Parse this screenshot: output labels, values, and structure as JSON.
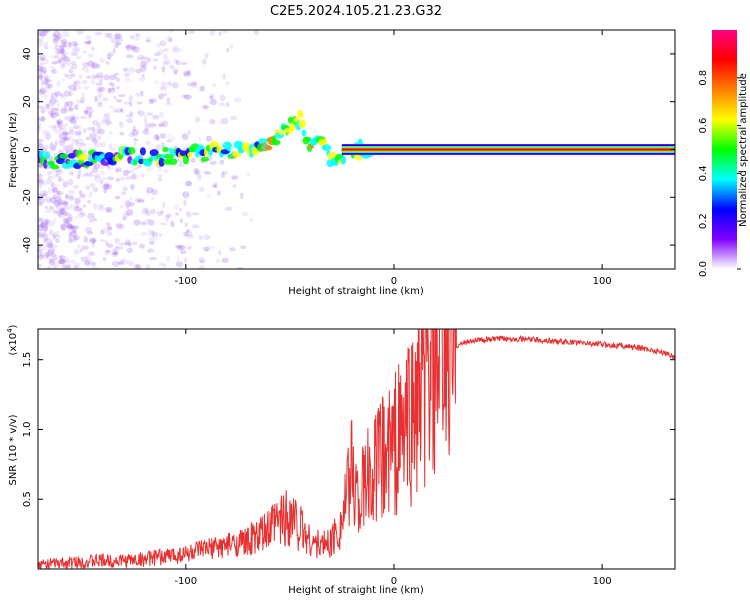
{
  "title": "C2E5.2024.105.21.23.G32",
  "chart_data": [
    {
      "type": "heatmap",
      "xlabel": "Height of straight line (km)",
      "ylabel": "Frequency (Hz)",
      "xlim": [
        -171,
        135
      ],
      "ylim": [
        -50,
        50
      ],
      "x_ticks": [
        -100,
        0,
        100
      ],
      "y_ticks": [
        -40,
        -20,
        0,
        20,
        40
      ],
      "x_tick_labels": [
        "-100",
        "0",
        "100"
      ],
      "y_tick_labels": [
        "-40",
        "-20",
        "0",
        "20",
        "40"
      ],
      "colorbar": {
        "label": "Normalized spectral amplitude",
        "range": [
          0,
          1
        ],
        "ticks": [
          0.0,
          0.2,
          0.4,
          0.6,
          0.8
        ],
        "tick_labels": [
          "0.0",
          "0.2",
          "0.4",
          "0.6",
          "0.8"
        ],
        "colormap": [
          "#ffffff",
          "#7f00ff",
          "#0000ff",
          "#00ffff",
          "#00ff00",
          "#ffff00",
          "#ff7f00",
          "#ff0000",
          "#ff0080"
        ]
      },
      "ridge": [
        {
          "x": -171,
          "y": -5
        },
        {
          "x": -150,
          "y": -4
        },
        {
          "x": -130,
          "y": -3
        },
        {
          "x": -110,
          "y": -3
        },
        {
          "x": -95,
          "y": -2
        },
        {
          "x": -80,
          "y": 0
        },
        {
          "x": -70,
          "y": -1
        },
        {
          "x": -60,
          "y": 3
        },
        {
          "x": -50,
          "y": 10
        },
        {
          "x": -45,
          "y": 12
        },
        {
          "x": -42,
          "y": 2
        },
        {
          "x": -35,
          "y": 3
        },
        {
          "x": -30,
          "y": -5
        },
        {
          "x": -25,
          "y": -2
        },
        {
          "x": -15,
          "y": 0
        },
        {
          "x": 0,
          "y": -1
        },
        {
          "x": 5,
          "y": 0
        },
        {
          "x": 135,
          "y": 0
        }
      ]
    },
    {
      "type": "line",
      "xlabel": "Height of straight line (km)",
      "ylabel": "SNR (10 * v/v)",
      "y_multiplier": "(x10",
      "y_multiplier_exp": "4",
      "xlim": [
        -171,
        135
      ],
      "ylim": [
        0,
        1.72
      ],
      "x_ticks": [
        -100,
        0,
        100
      ],
      "y_ticks": [
        0.5,
        1.0,
        1.5
      ],
      "x_tick_labels": [
        "-100",
        "0",
        "100"
      ],
      "y_tick_labels": [
        "0.5",
        "1.0",
        "1.5"
      ],
      "color": "#e83030",
      "series": [
        {
          "x": [
            -171,
            -160,
            -150,
            -140,
            -130,
            -120,
            -110,
            -100,
            -90,
            -80,
            -70,
            -62,
            -55,
            -50,
            -45,
            -40,
            -35,
            -30,
            -25,
            -22,
            -20,
            -18,
            -16,
            -14,
            -12,
            -10,
            -5,
            0,
            5,
            10,
            15,
            20,
            25,
            30,
            35,
            40,
            50,
            60,
            70,
            80,
            90,
            100,
            110,
            120,
            130,
            135
          ],
          "y": [
            0.03,
            0.04,
            0.05,
            0.06,
            0.06,
            0.07,
            0.09,
            0.11,
            0.14,
            0.17,
            0.2,
            0.25,
            0.35,
            0.4,
            0.3,
            0.2,
            0.17,
            0.2,
            0.35,
            0.55,
            0.75,
            0.55,
            0.5,
            0.6,
            0.65,
            0.7,
            0.8,
            0.9,
            1.0,
            1.15,
            1.3,
            1.45,
            1.55,
            1.6,
            1.63,
            1.64,
            1.65,
            1.65,
            1.64,
            1.63,
            1.62,
            1.61,
            1.6,
            1.58,
            1.55,
            1.52
          ]
        }
      ]
    }
  ]
}
